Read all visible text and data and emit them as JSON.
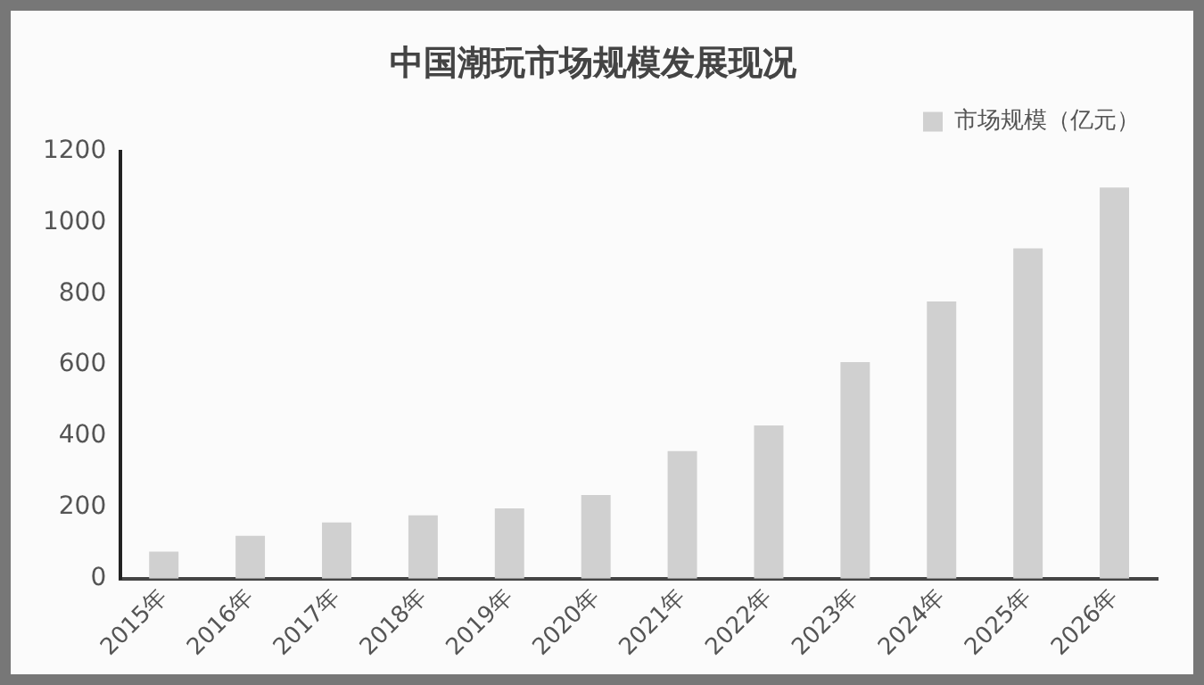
{
  "chart_data": {
    "type": "bar",
    "title": "中国潮玩市场规模发展现况",
    "categories": [
      "2015年",
      "2016年",
      "2017年",
      "2018年",
      "2019年",
      "2020年",
      "2021年",
      "2022年",
      "2023年",
      "2024年",
      "2025年",
      "2026年"
    ],
    "series": [
      {
        "name": "市场规模（亿元）",
        "color": "#d0d0d0",
        "values": [
          76,
          120,
          158,
          178,
          197,
          235,
          358,
          430,
          608,
          778,
          927,
          1098
        ]
      }
    ],
    "ylim": [
      0,
      1200
    ],
    "yticks": [
      0,
      200,
      400,
      600,
      800,
      1000,
      1200
    ],
    "grid": false,
    "legend": "top right"
  }
}
